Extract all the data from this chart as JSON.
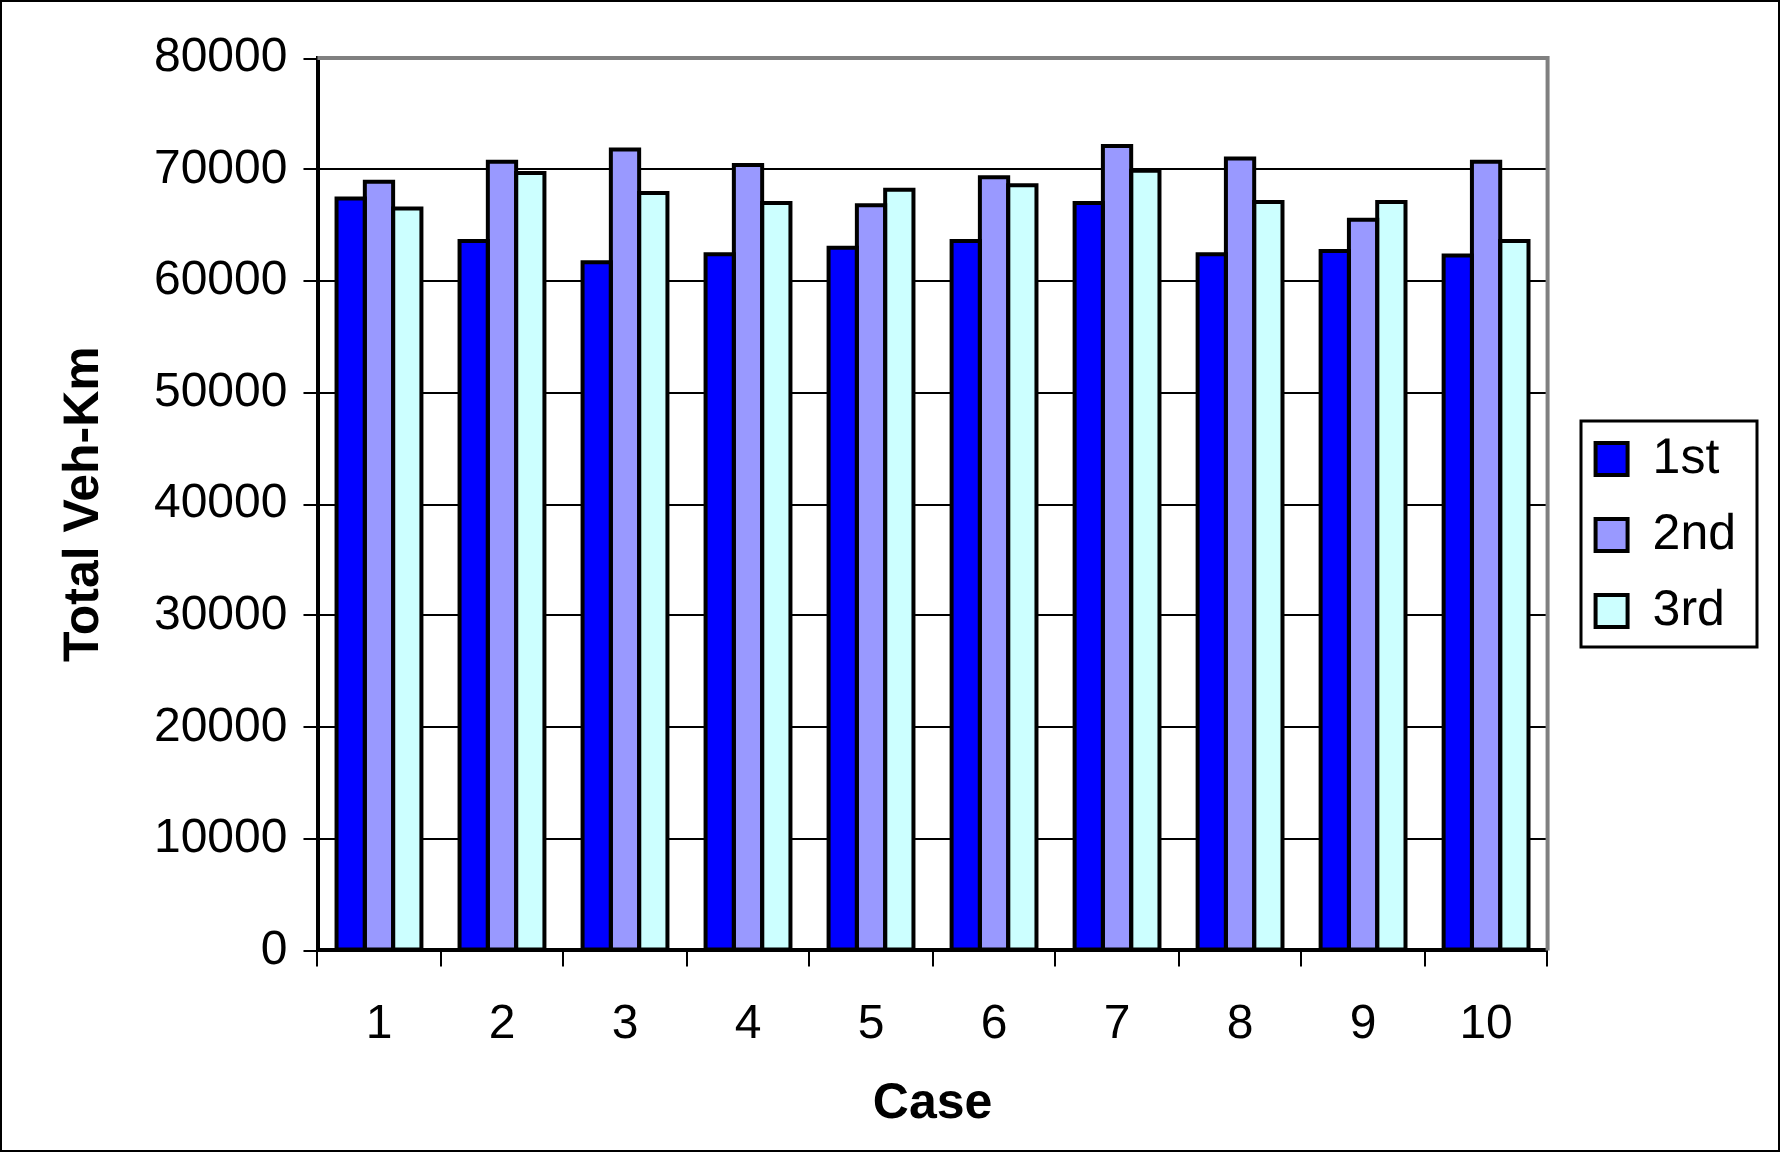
{
  "chart_data": {
    "type": "bar",
    "xlabel": "Case",
    "ylabel": "Total Veh-Km",
    "categories": [
      "1",
      "2",
      "3",
      "4",
      "5",
      "6",
      "7",
      "8",
      "9",
      "10"
    ],
    "series": [
      {
        "name": "1st",
        "color": "#0000ff",
        "values": [
          67400,
          63600,
          61700,
          62400,
          63000,
          63600,
          67000,
          62400,
          62700,
          62300
        ]
      },
      {
        "name": "2nd",
        "color": "#9999ff",
        "values": [
          68900,
          70700,
          71800,
          70400,
          66800,
          69300,
          72100,
          71000,
          65500,
          70700
        ]
      },
      {
        "name": "3rd",
        "color": "#ccffff",
        "values": [
          66500,
          69700,
          67900,
          67000,
          68200,
          68600,
          69900,
          67100,
          67100,
          63600
        ]
      }
    ],
    "ylim": [
      0,
      80000
    ],
    "yticks": [
      0,
      10000,
      20000,
      30000,
      40000,
      50000,
      60000,
      70000,
      80000
    ],
    "grid": "y",
    "legend": "right"
  }
}
